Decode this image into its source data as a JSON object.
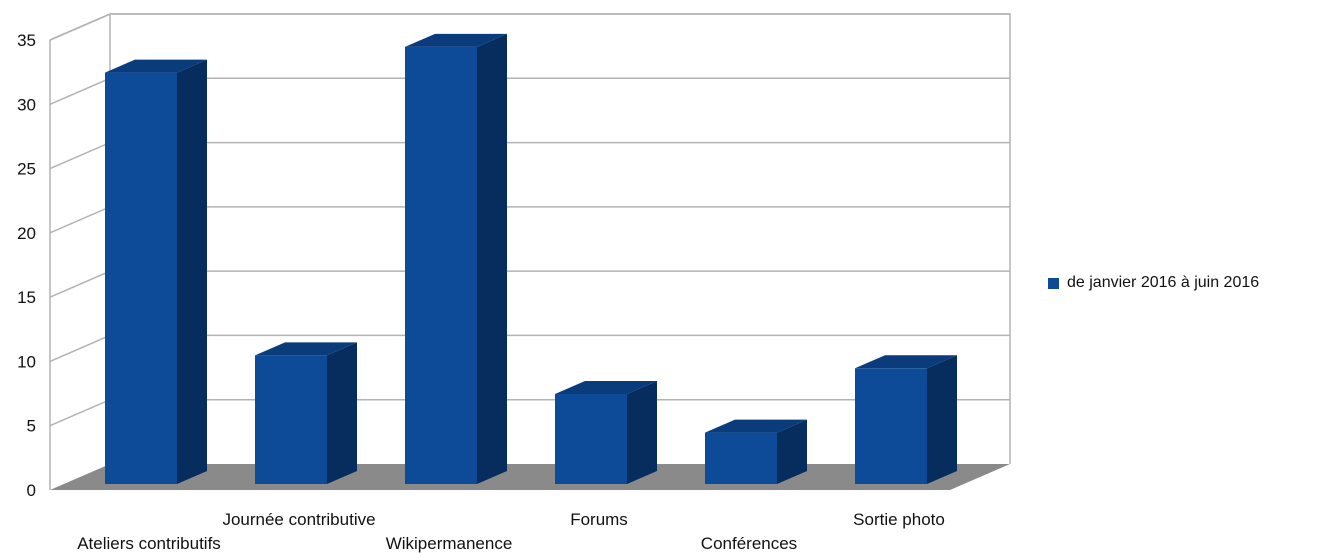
{
  "chart_data": {
    "type": "bar",
    "categories": [
      "Ateliers contributifs",
      "Journée contributive",
      "Wikipermanence",
      "Forums",
      "Conférences",
      "Sortie photo"
    ],
    "series": [
      {
        "name": "de janvier 2016 à juin 2016",
        "values": [
          32,
          10,
          34,
          7,
          4,
          9
        ]
      }
    ],
    "ylim": [
      0,
      35
    ],
    "yticks": [
      0,
      5,
      10,
      15,
      20,
      25,
      30,
      35
    ],
    "grid": true,
    "legend_position": "right",
    "style": "3d",
    "colors": {
      "bar_front": "#0d4a97",
      "bar_side": "#062d5e",
      "bar_top": "#0a3c7c",
      "floor": "#8a8a8a",
      "grid": "#b3b3b3"
    }
  }
}
